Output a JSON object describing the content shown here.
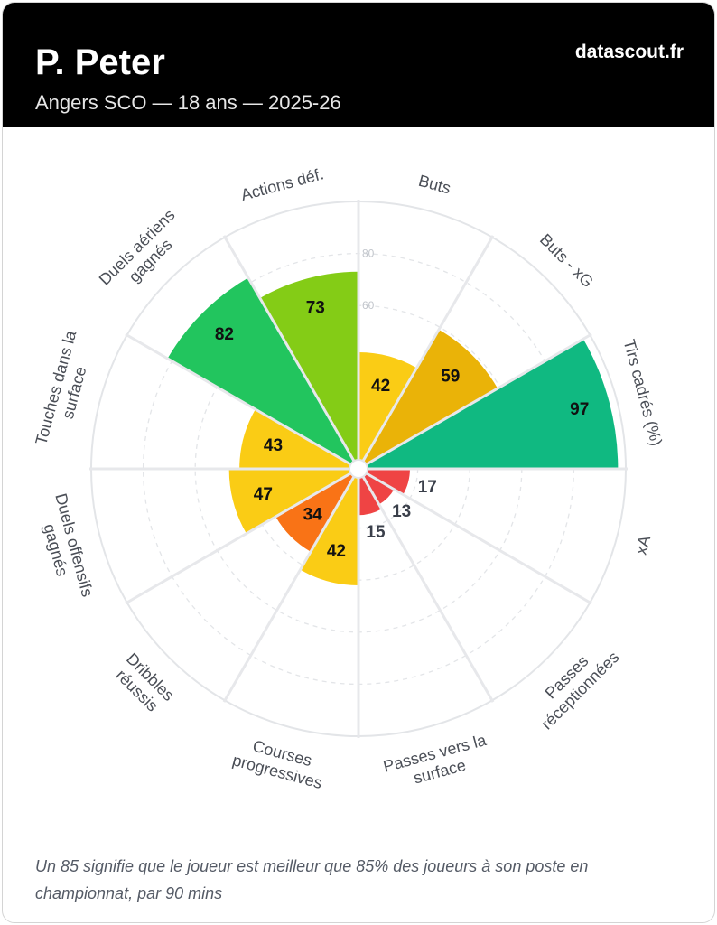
{
  "header": {
    "player_name": "P. Peter",
    "subtitle": "Angers SCO — 18 ans — 2025-26",
    "brand": "datascout.fr"
  },
  "footnote": "Un 85 signifie que le joueur est meilleur que 85% des joueurs à son poste en championnat, par 90 mins",
  "chart_data": {
    "type": "polar-bar",
    "range": [
      0,
      100
    ],
    "rings": [
      20,
      40,
      60,
      80,
      100
    ],
    "tick_labels": [
      "60",
      "80"
    ],
    "categories": [
      {
        "label": [
          "Buts"
        ],
        "value": 42,
        "color": "#facc15"
      },
      {
        "label": [
          "Buts - xG"
        ],
        "value": 59,
        "color": "#eab308"
      },
      {
        "label": [
          "Tirs cadrés (%)"
        ],
        "value": 97,
        "color": "#10b981"
      },
      {
        "label": [
          "xA"
        ],
        "value": 17,
        "color": "#ef4444"
      },
      {
        "label": [
          "Passes",
          "réceptionnées"
        ],
        "value": 13,
        "color": "#ef4444"
      },
      {
        "label": [
          "Passes vers la",
          "surface"
        ],
        "value": 15,
        "color": "#ef4444"
      },
      {
        "label": [
          "Courses",
          "progressives"
        ],
        "value": 42,
        "color": "#facc15"
      },
      {
        "label": [
          "Dribbles",
          "réussis"
        ],
        "value": 34,
        "color": "#f97316"
      },
      {
        "label": [
          "Duels offensifs",
          "gagnés"
        ],
        "value": 47,
        "color": "#facc15"
      },
      {
        "label": [
          "Touches dans la",
          "surface"
        ],
        "value": 43,
        "color": "#facc15"
      },
      {
        "label": [
          "Duels aériens",
          "gagnés"
        ],
        "value": 82,
        "color": "#22c55e"
      },
      {
        "label": [
          "Actions déf."
        ],
        "value": 73,
        "color": "#84cc16"
      }
    ]
  }
}
